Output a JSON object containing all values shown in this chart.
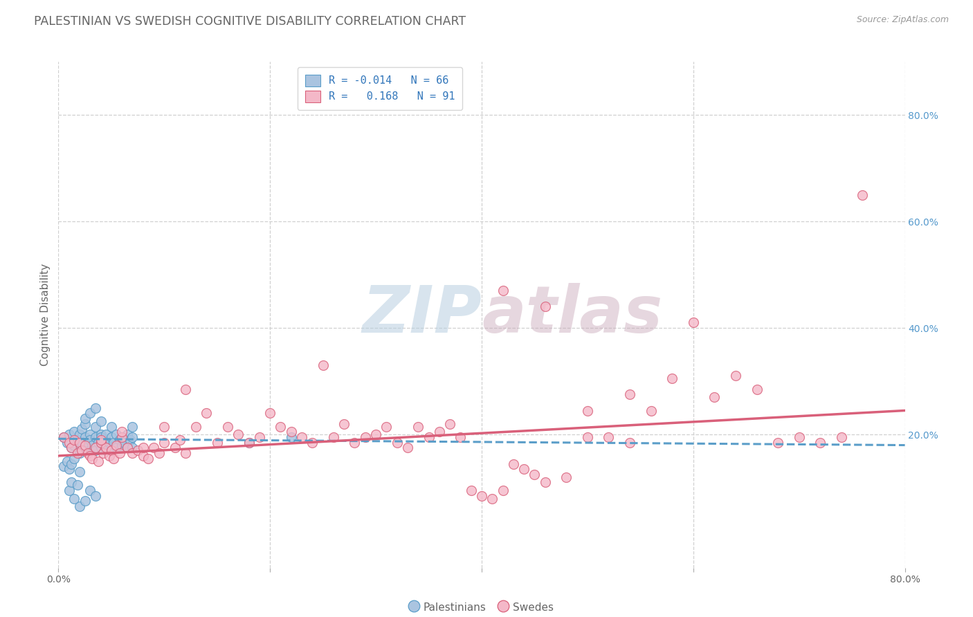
{
  "title": "PALESTINIAN VS SWEDISH COGNITIVE DISABILITY CORRELATION CHART",
  "source": "Source: ZipAtlas.com",
  "ylabel": "Cognitive Disability",
  "xlim": [
    0.0,
    0.8
  ],
  "ylim": [
    -0.05,
    0.9
  ],
  "xticks": [
    0.0,
    0.2,
    0.4,
    0.6,
    0.8
  ],
  "xtick_labels": [
    "0.0%",
    "",
    "",
    "",
    "80.0%"
  ],
  "right_yticks": [
    0.2,
    0.4,
    0.6,
    0.8
  ],
  "right_ytick_labels": [
    "20.0%",
    "40.0%",
    "60.0%",
    "80.0%"
  ],
  "legend_R_blue": "-0.014",
  "legend_N_blue": "66",
  "legend_R_pink": "0.168",
  "legend_N_pink": "91",
  "blue_color": "#aac4e0",
  "pink_color": "#f4b8c8",
  "blue_edge_color": "#5b9ec9",
  "pink_edge_color": "#d9607a",
  "blue_line_color": "#5b9ec9",
  "pink_line_color": "#d9607a",
  "watermark_color": "#dce8f0",
  "background_color": "#ffffff",
  "grid_color": "#d0d0d0",
  "blue_scatter_x": [
    0.005,
    0.008,
    0.01,
    0.012,
    0.015,
    0.015,
    0.018,
    0.02,
    0.02,
    0.022,
    0.022,
    0.025,
    0.025,
    0.025,
    0.028,
    0.03,
    0.03,
    0.03,
    0.032,
    0.035,
    0.035,
    0.035,
    0.038,
    0.04,
    0.04,
    0.04,
    0.042,
    0.045,
    0.045,
    0.048,
    0.05,
    0.05,
    0.05,
    0.052,
    0.055,
    0.055,
    0.058,
    0.06,
    0.06,
    0.062,
    0.065,
    0.065,
    0.068,
    0.07,
    0.07,
    0.07,
    0.005,
    0.008,
    0.01,
    0.012,
    0.015,
    0.02,
    0.025,
    0.03,
    0.035,
    0.04,
    0.02,
    0.025,
    0.03,
    0.035,
    0.18,
    0.22,
    0.01,
    0.012,
    0.015,
    0.018
  ],
  "blue_scatter_y": [
    0.195,
    0.185,
    0.2,
    0.175,
    0.205,
    0.18,
    0.19,
    0.2,
    0.165,
    0.185,
    0.21,
    0.195,
    0.175,
    0.22,
    0.185,
    0.2,
    0.17,
    0.19,
    0.18,
    0.195,
    0.215,
    0.17,
    0.185,
    0.2,
    0.175,
    0.195,
    0.185,
    0.2,
    0.17,
    0.185,
    0.195,
    0.175,
    0.215,
    0.185,
    0.2,
    0.175,
    0.19,
    0.195,
    0.18,
    0.185,
    0.2,
    0.175,
    0.19,
    0.195,
    0.175,
    0.215,
    0.14,
    0.15,
    0.135,
    0.145,
    0.155,
    0.13,
    0.23,
    0.24,
    0.25,
    0.225,
    0.065,
    0.075,
    0.095,
    0.085,
    0.185,
    0.195,
    0.095,
    0.11,
    0.08,
    0.105
  ],
  "pink_scatter_x": [
    0.005,
    0.01,
    0.012,
    0.015,
    0.018,
    0.02,
    0.022,
    0.025,
    0.028,
    0.03,
    0.032,
    0.035,
    0.038,
    0.04,
    0.042,
    0.045,
    0.048,
    0.05,
    0.052,
    0.055,
    0.058,
    0.06,
    0.065,
    0.07,
    0.075,
    0.08,
    0.085,
    0.09,
    0.095,
    0.1,
    0.11,
    0.115,
    0.12,
    0.13,
    0.14,
    0.15,
    0.16,
    0.17,
    0.18,
    0.19,
    0.2,
    0.21,
    0.22,
    0.23,
    0.24,
    0.25,
    0.26,
    0.27,
    0.28,
    0.29,
    0.3,
    0.31,
    0.32,
    0.33,
    0.34,
    0.35,
    0.36,
    0.37,
    0.38,
    0.39,
    0.4,
    0.41,
    0.42,
    0.43,
    0.44,
    0.45,
    0.46,
    0.48,
    0.5,
    0.52,
    0.54,
    0.56,
    0.58,
    0.6,
    0.62,
    0.64,
    0.66,
    0.68,
    0.7,
    0.72,
    0.74,
    0.76,
    0.04,
    0.06,
    0.08,
    0.1,
    0.12,
    0.42,
    0.46,
    0.5,
    0.54
  ],
  "pink_scatter_y": [
    0.195,
    0.185,
    0.175,
    0.19,
    0.165,
    0.185,
    0.17,
    0.18,
    0.165,
    0.16,
    0.155,
    0.175,
    0.15,
    0.185,
    0.165,
    0.175,
    0.16,
    0.17,
    0.155,
    0.18,
    0.165,
    0.195,
    0.175,
    0.165,
    0.17,
    0.16,
    0.155,
    0.175,
    0.165,
    0.185,
    0.175,
    0.19,
    0.165,
    0.215,
    0.24,
    0.185,
    0.215,
    0.2,
    0.185,
    0.195,
    0.24,
    0.215,
    0.205,
    0.195,
    0.185,
    0.33,
    0.195,
    0.22,
    0.185,
    0.195,
    0.2,
    0.215,
    0.185,
    0.175,
    0.215,
    0.195,
    0.205,
    0.22,
    0.195,
    0.095,
    0.085,
    0.08,
    0.095,
    0.145,
    0.135,
    0.125,
    0.11,
    0.12,
    0.245,
    0.195,
    0.275,
    0.245,
    0.305,
    0.41,
    0.27,
    0.31,
    0.285,
    0.185,
    0.195,
    0.185,
    0.195,
    0.65,
    0.19,
    0.205,
    0.175,
    0.215,
    0.285,
    0.47,
    0.44,
    0.195,
    0.185
  ],
  "blue_trend_x": [
    0.0,
    0.8
  ],
  "blue_trend_y": [
    0.192,
    0.18
  ],
  "pink_trend_x": [
    0.0,
    0.8
  ],
  "pink_trend_y": [
    0.16,
    0.245
  ]
}
